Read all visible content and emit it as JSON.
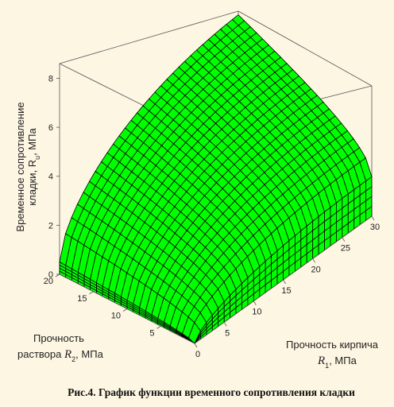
{
  "chart_data": {
    "type": "surface3d",
    "surface_color": "#00ff00",
    "grid_color": "#000000",
    "xlabel": "Прочность кирпича R1, МПа",
    "ylabel": "Прочность раствора R2, МПа",
    "zlabel": "Временное сопротивление кладки, Rи, МПа",
    "x_ticks": [
      "0",
      "5",
      "10",
      "15",
      "20",
      "25",
      "30"
    ],
    "y_ticks": [
      "5",
      "10",
      "15",
      "20"
    ],
    "z_ticks": [
      "0",
      "2",
      "4",
      "6",
      "8"
    ],
    "xlim": [
      0,
      30
    ],
    "ylim": [
      0,
      20
    ],
    "zlim": [
      0,
      8.6
    ],
    "z_corner_values": {
      "R1_0_R2_0": 0,
      "R1_30_R2_0": 2.6,
      "R1_0_R2_20": 0.5,
      "R1_30_R2_20": 8.4
    }
  },
  "labels": {
    "zlabel_line1": "Временное сопротивление",
    "zlabel_line2": "кладки, R",
    "zlabel_sub": "u",
    "zlabel_unit": ", МПа",
    "ylabel_line1": "Прочность",
    "ylabel_line2": "раствора ",
    "ylabel_var": "R",
    "ylabel_sub": "2",
    "ylabel_unit": ", МПа",
    "xlabel_line1": "Прочность кирпича",
    "xlabel_var": "R",
    "xlabel_sub": "1",
    "xlabel_unit": ", МПа"
  },
  "caption": "Рис.4. График функции временного сопротивления кладки"
}
